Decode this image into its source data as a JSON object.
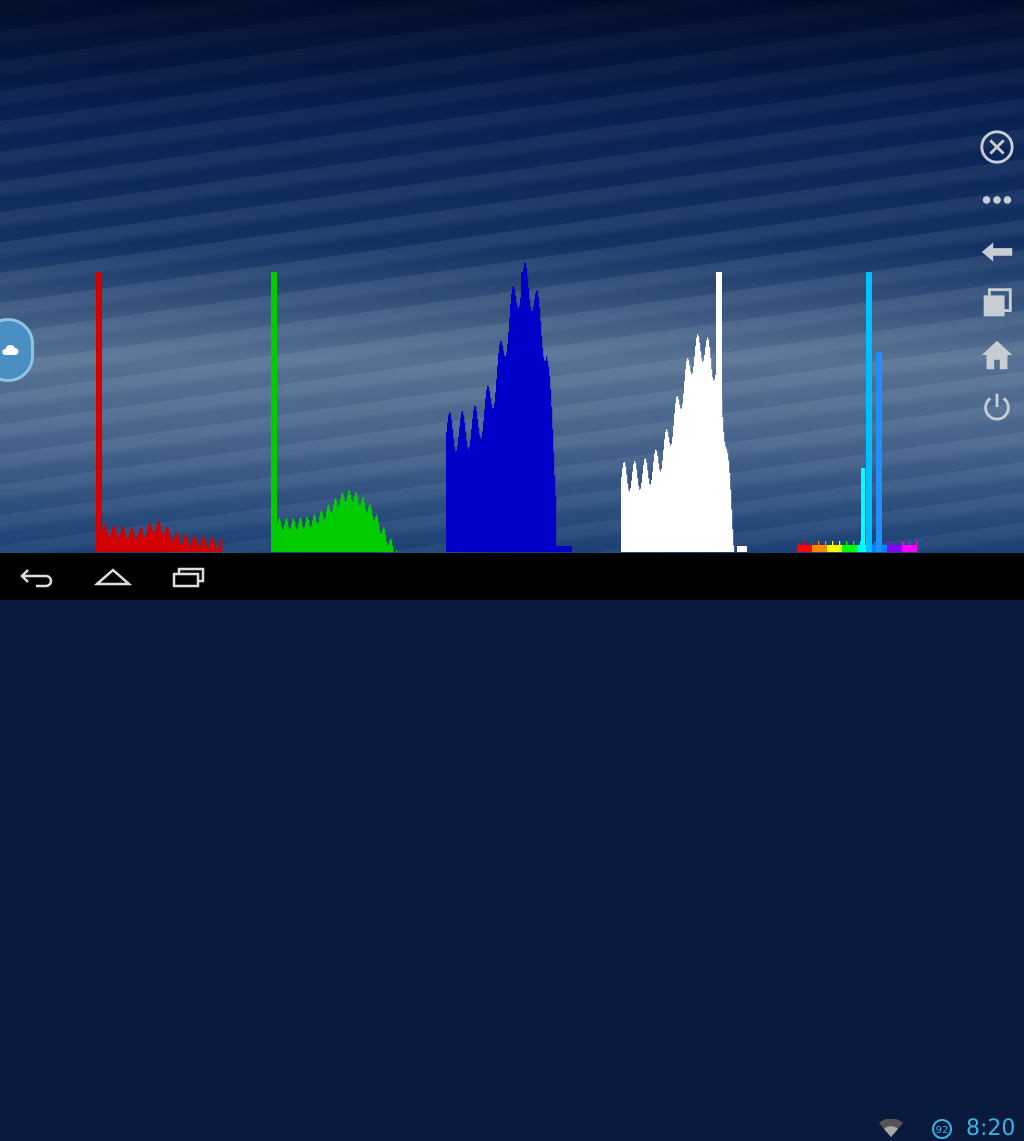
{
  "app": {
    "histogram_colors": {
      "red": "#d40000",
      "green": "#00cc00",
      "blue": "#0000c8",
      "white": "#ffffff",
      "hue": "#00bfff"
    }
  },
  "side_menu": {
    "items": [
      {
        "name": "close-icon"
      },
      {
        "name": "more-icon"
      },
      {
        "name": "back-arrow-icon"
      },
      {
        "name": "recent-windows-icon"
      },
      {
        "name": "home-icon"
      },
      {
        "name": "power-icon"
      }
    ]
  },
  "status_bar": {
    "time": "8:20",
    "battery": "92",
    "accent": "#33b5e5"
  },
  "nav_bar": {
    "buttons": [
      {
        "name": "back-icon"
      },
      {
        "name": "home-icon"
      },
      {
        "name": "recent-apps-icon"
      }
    ]
  }
}
